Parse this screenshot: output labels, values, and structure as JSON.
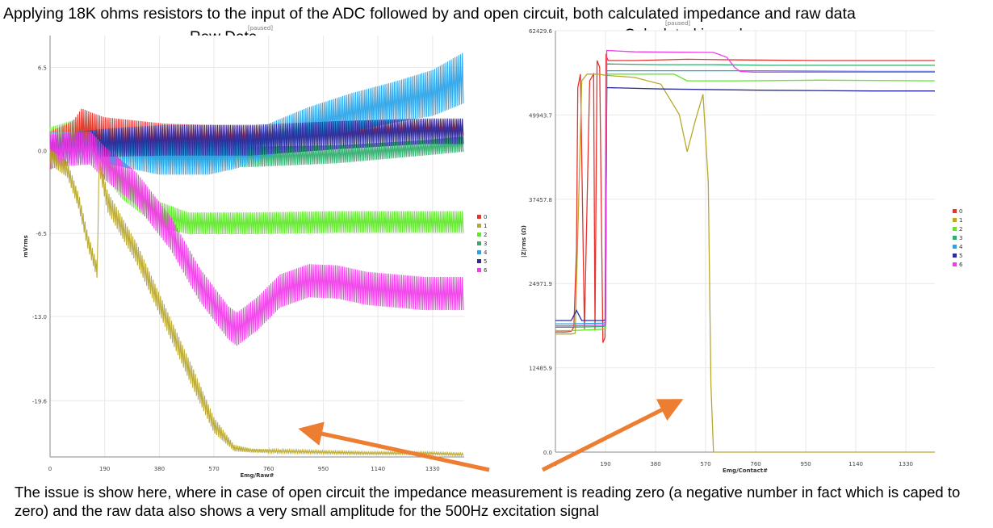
{
  "headline": "Applying 18K ohms resistors to the input of the ADC followed by and open circuit, both calculated impedance and raw data",
  "footer": "The issue is show here, where in case of open circuit the impedance measurement is reading zero (a negative number in fact which is caped to zero) and the raw data also shows a very small amplitude for the 500Hz excitation signal",
  "chart_data": [
    {
      "type": "area",
      "title": "Raw Data",
      "status": "[paused]",
      "xlabel": "Emg/Raw#",
      "ylabel": "mVrms",
      "xticks": [
        "0",
        "190",
        "380",
        "570",
        "760",
        "950",
        "1140",
        "1330"
      ],
      "yticks": [
        "6.5",
        "0.0",
        "-6.5",
        "-13.0",
        "-19.6"
      ],
      "ytick_values": [
        6.5,
        0.0,
        -6.5,
        -13.0,
        -19.6
      ],
      "xlim": [
        0,
        1440
      ],
      "ylim": [
        -24,
        9
      ],
      "legend": [
        "0",
        "1",
        "2",
        "3",
        "4",
        "5",
        "6"
      ],
      "legend_position": "right",
      "grid": true,
      "series": [
        {
          "name": "0",
          "color": "#e8322e",
          "x": [
            0,
            80,
            110,
            140,
            190,
            400,
            700,
            1000,
            1300,
            1440
          ],
          "center": [
            0,
            0.8,
            1.8,
            1.5,
            1.0,
            1.0,
            1.2,
            1.5,
            1.8,
            1.8
          ],
          "half": [
            1.5,
            1.5,
            1.5,
            1.5,
            1.6,
            1.1,
            0.7,
            0.6,
            0.6,
            0.6
          ]
        },
        {
          "name": "1",
          "color": "#b9a82c",
          "x": [
            0,
            60,
            100,
            130,
            165,
            170,
            200,
            300,
            400,
            500,
            570,
            640,
            700,
            900,
            1100,
            1300,
            1440
          ],
          "center": [
            -0.5,
            -1.5,
            -4,
            -7,
            -9.5,
            -1,
            -4,
            -8,
            -13,
            -18,
            -21.5,
            -23.3,
            -23.5,
            -23.6,
            -23.7,
            -23.7,
            -23.8
          ],
          "half": [
            0.6,
            0.6,
            0.6,
            0.6,
            0.6,
            0.6,
            0.8,
            0.8,
            0.8,
            0.8,
            0.6,
            0.25,
            0.15,
            0.12,
            0.1,
            0.1,
            0.1
          ]
        },
        {
          "name": "2",
          "color": "#5ee827",
          "x": [
            0,
            140,
            190,
            250,
            380,
            480,
            700,
            1000,
            1440
          ],
          "center": [
            0.5,
            1.5,
            -0.5,
            -2.5,
            -5.0,
            -5.7,
            -5.7,
            -5.6,
            -5.6
          ],
          "half": [
            1.3,
            1.3,
            1.4,
            1.3,
            1.0,
            0.85,
            0.85,
            0.85,
            0.85
          ]
        },
        {
          "name": "3",
          "color": "#2ead6e",
          "x": [
            0,
            190,
            400,
            700,
            1000,
            1300,
            1440
          ],
          "center": [
            0.0,
            0.5,
            -0.2,
            -0.5,
            -0.3,
            0.2,
            0.5
          ],
          "half": [
            1.2,
            1.2,
            1.0,
            0.8,
            0.7,
            0.6,
            0.6
          ]
        },
        {
          "name": "4",
          "color": "#29a3e8",
          "x": [
            0,
            190,
            380,
            550,
            650,
            760,
            900,
            1050,
            1200,
            1330,
            1440
          ],
          "center": [
            0.2,
            0.3,
            -0.6,
            -0.6,
            -0.2,
            0.8,
            2.0,
            3.0,
            3.8,
            4.5,
            5.7
          ],
          "half": [
            1.2,
            1.3,
            1.3,
            1.3,
            1.2,
            1.3,
            1.4,
            1.5,
            1.6,
            1.8,
            2.0
          ]
        },
        {
          "name": "5",
          "color": "#2a2a9a",
          "x": [
            0,
            190,
            400,
            700,
            1000,
            1300,
            1440
          ],
          "center": [
            0.2,
            0.6,
            0.8,
            0.8,
            1.2,
            1.5,
            1.5
          ],
          "half": [
            1.0,
            1.1,
            1.2,
            1.2,
            1.1,
            1.0,
            1.0
          ]
        },
        {
          "name": "6",
          "color": "#f03ce8",
          "x": [
            0,
            140,
            190,
            300,
            420,
            520,
            620,
            650,
            720,
            800,
            900,
            1000,
            1100,
            1300,
            1440
          ],
          "center": [
            0,
            0.2,
            -1.0,
            -3.0,
            -6.5,
            -10.5,
            -13.5,
            -14.0,
            -12.8,
            -11.0,
            -10.2,
            -10.3,
            -10.8,
            -11.2,
            -11.2
          ],
          "half": [
            1.3,
            1.3,
            1.3,
            1.3,
            1.3,
            1.3,
            1.3,
            1.3,
            1.3,
            1.3,
            1.3,
            1.3,
            1.3,
            1.3,
            1.3
          ]
        }
      ]
    },
    {
      "type": "line",
      "title": "Calculated impedance",
      "status": "[paused]",
      "xlabel": "Emg/Contact#",
      "ylabel": "|Z|rms (Ω)",
      "xticks": [
        "0",
        "190",
        "380",
        "570",
        "760",
        "950",
        "1140",
        "1330"
      ],
      "yticks": [
        "62429.6",
        "49943.7",
        "37457.8",
        "24971.9",
        "12485.9",
        "0.0"
      ],
      "ytick_values": [
        62429.6,
        49943.7,
        37457.8,
        24971.9,
        12485.9,
        0.0
      ],
      "xlim": [
        0,
        1440
      ],
      "ylim": [
        0,
        62429.6
      ],
      "legend": [
        "0",
        "1",
        "2",
        "3",
        "4",
        "5",
        "6"
      ],
      "legend_position": "right",
      "grid": true,
      "series": [
        {
          "name": "0",
          "color": "#e8322e",
          "x": [
            0,
            40,
            60,
            70,
            80,
            85,
            95,
            110,
            130,
            145,
            150,
            158,
            168,
            180,
            188,
            192,
            195,
            200,
            300,
            500,
            700,
            1000,
            1440
          ],
          "y": [
            17800,
            17800,
            17900,
            18500,
            30000,
            54000,
            56000,
            18200,
            55000,
            56000,
            18000,
            58000,
            57000,
            16200,
            17000,
            59000,
            58500,
            58000,
            58000,
            58200,
            58100,
            58000,
            58000
          ]
        },
        {
          "name": "1",
          "color": "#b9a82c",
          "x": [
            0,
            60,
            75,
            90,
            100,
            120,
            160,
            195,
            300,
            400,
            470,
            500,
            530,
            560,
            580,
            590,
            600,
            605,
            1440
          ],
          "y": [
            17500,
            17500,
            17600,
            40000,
            55000,
            56000,
            56000,
            55800,
            55500,
            54500,
            50000,
            44500,
            49000,
            53000,
            40000,
            10000,
            0,
            0,
            0
          ]
        },
        {
          "name": "2",
          "color": "#5ee827",
          "x": [
            0,
            60,
            180,
            190,
            195,
            300,
            450,
            500,
            600,
            700,
            1000,
            1440
          ],
          "y": [
            18000,
            18000,
            18200,
            18300,
            56000,
            56000,
            56000,
            55000,
            55000,
            55000,
            55100,
            55000
          ]
        },
        {
          "name": "3",
          "color": "#2ead6e",
          "x": [
            0,
            60,
            180,
            190,
            195,
            400,
            600,
            800,
            1000,
            1200,
            1440
          ],
          "y": [
            18500,
            18500,
            18600,
            18700,
            57500,
            57400,
            57400,
            57300,
            57300,
            57300,
            57300
          ]
        },
        {
          "name": "4",
          "color": "#29a3e8",
          "x": [
            0,
            60,
            180,
            190,
            195,
            400,
            800,
            1200,
            1440
          ],
          "y": [
            19000,
            19000,
            19100,
            19200,
            56500,
            56500,
            56500,
            56400,
            56400
          ]
        },
        {
          "name": "5",
          "color": "#2a2a9a",
          "x": [
            0,
            60,
            80,
            100,
            120,
            180,
            190,
            195,
            400,
            800,
            1200,
            1440
          ],
          "y": [
            19500,
            19500,
            21000,
            19500,
            19500,
            19500,
            19600,
            54000,
            53800,
            53600,
            53500,
            53500
          ]
        },
        {
          "name": "6",
          "color": "#f03ce8",
          "x": [
            0,
            60,
            180,
            190,
            195,
            300,
            600,
            650,
            680,
            700,
            750,
            800,
            1000,
            1200,
            1440
          ],
          "y": [
            18700,
            18700,
            18800,
            18900,
            59500,
            59300,
            59200,
            58500,
            57000,
            56400,
            56300,
            56300,
            56300,
            56300,
            56300
          ]
        }
      ]
    }
  ]
}
